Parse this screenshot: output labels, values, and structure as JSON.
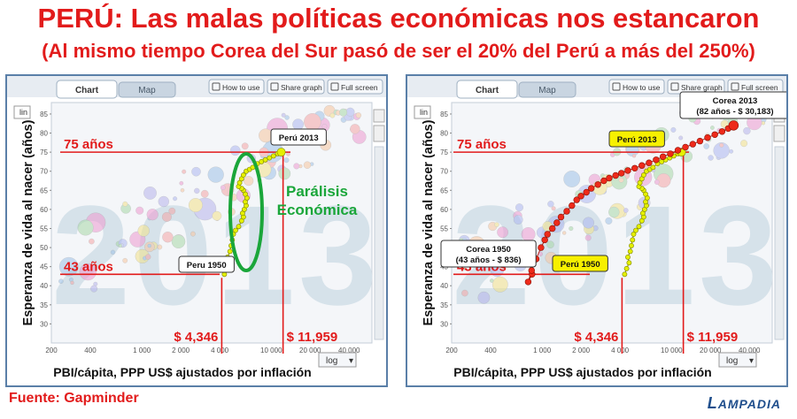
{
  "header": {
    "title": "PERÚ: Las malas políticas económicas nos estancaron",
    "subtitle": "(Al mismo tiempo Corea del Sur pasó de ser el 20% del Perú a más del 250%)"
  },
  "toolbar": {
    "tab_chart": "Chart",
    "tab_map": "Map",
    "how_to_use": "How to use",
    "share_graph": "Share graph",
    "full_screen": "Full screen",
    "y_scale": "lin",
    "x_scale": "log"
  },
  "footer": {
    "source": "Fuente: Gapminder",
    "brand_first": "L",
    "brand_rest": "AMPADIA"
  },
  "colors": {
    "title_red": "#e21b1b",
    "panel_border": "#5a7fa8",
    "peru_yellow": "#e5f000",
    "korea_red": "#ee2a1a",
    "annotation_green": "#1aa63a",
    "year_watermark": "#d6e2ea"
  },
  "chart_data": [
    {
      "type": "scatter",
      "year_watermark": "2013",
      "ylabel": "Esperanza de vida al nacer (años)",
      "xlabel": "PBI/cápita, PPP US$ ajustados por inflación",
      "x_scale": "log",
      "xlim": [
        200,
        60000
      ],
      "ylim": [
        25,
        88
      ],
      "x_ticks": [
        200,
        400,
        1000,
        2000,
        4000,
        10000,
        20000,
        40000
      ],
      "x_tick_labels": [
        "200",
        "400",
        "1 000",
        "2 000",
        "4 000",
        "10 000",
        "20 000",
        "40 000"
      ],
      "y_ticks": [
        30,
        35,
        40,
        45,
        50,
        55,
        60,
        65,
        70,
        75,
        80,
        85
      ],
      "series": [
        {
          "name": "Perú",
          "color": "#e5f000",
          "x": [
            4346,
            4500,
            4700,
            4600,
            4800,
            4900,
            5000,
            5100,
            5300,
            5600,
            5900,
            6100,
            6000,
            6200,
            6400,
            6300,
            6500,
            6300,
            6100,
            5900,
            5600,
            5700,
            5900,
            6100,
            6400,
            6800,
            7200,
            7800,
            8400,
            9000,
            9700,
            10400,
            11200,
            11959
          ],
          "y": [
            43,
            44.5,
            46,
            47.5,
            49,
            50.5,
            52,
            53.5,
            54.5,
            55.5,
            57,
            58,
            59,
            60,
            61,
            62,
            63,
            64,
            65,
            65.5,
            66,
            67,
            68,
            69,
            70,
            70.5,
            71,
            72,
            72.5,
            73,
            73.5,
            74,
            74.6,
            75
          ]
        }
      ],
      "reference_lines": {
        "y_values": [
          75,
          43
        ],
        "y_labels": [
          "75 años",
          "43 años"
        ],
        "x_values": [
          4346,
          11959
        ],
        "x_labels": [
          "$ 4,346",
          "$ 11,959"
        ]
      },
      "annotations": {
        "peru_start": "Peru 1950",
        "peru_end": "Perú 2013",
        "note_line1": "Parálisis",
        "note_line2": "Económica"
      }
    },
    {
      "type": "scatter",
      "year_watermark": "2013",
      "ylabel": "Esperanza de vida al nacer (años)",
      "xlabel": "PBI/cápita, PPP US$ ajustados por inflación",
      "x_scale": "log",
      "xlim": [
        200,
        60000
      ],
      "ylim": [
        25,
        88
      ],
      "x_ticks": [
        200,
        400,
        1000,
        2000,
        4000,
        10000,
        20000,
        40000
      ],
      "x_tick_labels": [
        "200",
        "400",
        "1 000",
        "2 000",
        "4 000",
        "10 000",
        "20 000",
        "40 000"
      ],
      "y_ticks": [
        30,
        35,
        40,
        45,
        50,
        55,
        60,
        65,
        70,
        75,
        80,
        85
      ],
      "series": [
        {
          "name": "Perú",
          "color": "#e5f000",
          "x": [
            4346,
            4500,
            4700,
            4600,
            4800,
            4900,
            5000,
            5100,
            5300,
            5600,
            5900,
            6100,
            6000,
            6200,
            6400,
            6300,
            6500,
            6300,
            6100,
            5900,
            5600,
            5700,
            5900,
            6100,
            6400,
            6800,
            7200,
            7800,
            8400,
            9000,
            9700,
            10400,
            11200,
            11959
          ],
          "y": [
            43,
            44.5,
            46,
            47.5,
            49,
            50.5,
            52,
            53.5,
            54.5,
            55.5,
            57,
            58,
            59,
            60,
            61,
            62,
            63,
            64,
            65,
            65.5,
            66,
            67,
            68,
            69,
            70,
            70.5,
            71,
            72,
            72.5,
            73,
            73.5,
            74,
            74.6,
            75
          ]
        },
        {
          "name": "Corea",
          "color": "#ee2a1a",
          "x": [
            836,
            780,
            830,
            900,
            980,
            1050,
            1100,
            1200,
            1300,
            1400,
            1550,
            1700,
            1850,
            2000,
            2200,
            2400,
            2700,
            3000,
            3300,
            3700,
            4100,
            4600,
            5200,
            5900,
            6700,
            7600,
            8600,
            9800,
            11200,
            12800,
            14600,
            16600,
            19000,
            21600,
            24600,
            27400,
            30183
          ],
          "y": [
            43,
            41,
            44,
            47,
            50,
            52,
            53.5,
            55,
            56.5,
            58,
            59.5,
            61,
            62.5,
            63.5,
            64.5,
            65.5,
            66.5,
            67.5,
            68.2,
            68.9,
            69.5,
            70.2,
            70.8,
            71.5,
            72.2,
            73,
            73.8,
            74.6,
            75.5,
            76.3,
            77.1,
            77.9,
            78.8,
            79.6,
            80.4,
            81.2,
            82
          ]
        }
      ],
      "reference_lines": {
        "y_values": [
          75,
          43
        ],
        "y_labels": [
          "75 años",
          "43 años"
        ],
        "x_values": [
          4346,
          11959
        ],
        "x_labels": [
          "$ 4,346",
          "$ 11,959"
        ]
      },
      "annotations": {
        "peru_start": "Perú 1950",
        "peru_end": "Perú 2013",
        "korea_start_line1": "Corea 1950",
        "korea_start_line2": "(43 años - $ 836)",
        "korea_end_line1": "Corea 2013",
        "korea_end_line2": "(82 años - $ 30,183)"
      }
    }
  ]
}
